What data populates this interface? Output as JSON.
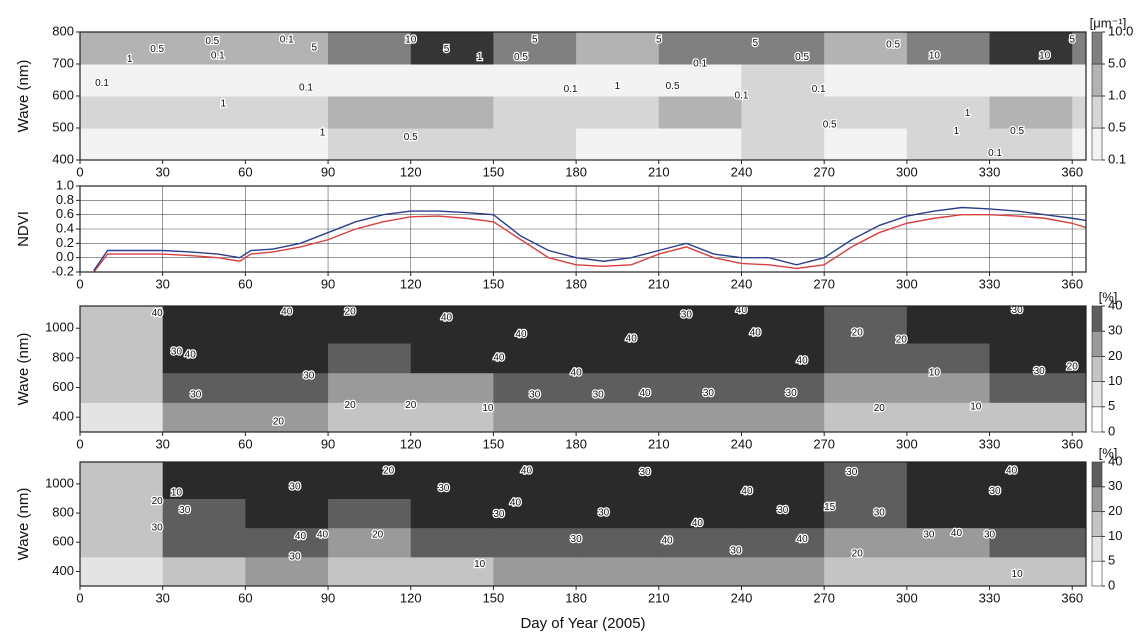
{
  "chart_data": [
    {
      "type": "heatmap",
      "ylabel": "Wave (nm)",
      "colorbar_unit": "[μm⁻¹]",
      "xlim": [
        0,
        365
      ],
      "xticks": [
        0,
        30,
        60,
        90,
        120,
        150,
        180,
        210,
        240,
        270,
        300,
        330,
        360
      ],
      "ylim": [
        400,
        800
      ],
      "yticks": [
        400,
        500,
        600,
        700,
        800
      ],
      "x_edges": [
        0,
        30,
        60,
        90,
        120,
        150,
        180,
        210,
        240,
        270,
        300,
        330,
        360,
        365
      ],
      "y_edges": [
        400,
        500,
        600,
        700,
        800
      ],
      "values": [
        [
          0.3,
          0.4,
          0.3,
          0.5,
          0.5,
          0.5,
          0.4,
          0.4,
          0.5,
          0.3,
          0.5,
          0.5,
          0.4
        ],
        [
          0.5,
          0.8,
          0.6,
          1,
          1,
          0.8,
          0.8,
          1,
          0.8,
          0.5,
          0.8,
          1,
          0.8
        ],
        [
          0.2,
          0.3,
          0.2,
          0.3,
          0.3,
          0.3,
          0.3,
          0.4,
          0.5,
          0.2,
          0.3,
          0.4,
          0.4
        ],
        [
          1,
          3,
          2,
          8,
          10,
          9,
          3,
          6,
          5,
          1,
          6,
          10,
          8
        ]
      ],
      "colorbar_ticks": [
        0.1,
        0.5,
        {
          "value": 1,
          "label": "1.0"
        },
        {
          "value": 5,
          "label": "5.0"
        },
        {
          "value": 10,
          "label": "10.0"
        }
      ],
      "colorscale": [
        "#f3f3f3",
        "#d6d6d6",
        "#b3b3b3",
        "#808080",
        "#353535"
      ],
      "contour_labels": [
        {
          "x": 8,
          "y": 640,
          "label": "0.1"
        },
        {
          "x": 18,
          "y": 715,
          "label": "1"
        },
        {
          "x": 28,
          "y": 745,
          "label": "0.5"
        },
        {
          "x": 48,
          "y": 770,
          "label": "0.5"
        },
        {
          "x": 50,
          "y": 725,
          "label": "0.1"
        },
        {
          "x": 52,
          "y": 575,
          "label": "1"
        },
        {
          "x": 75,
          "y": 775,
          "label": "0.1"
        },
        {
          "x": 82,
          "y": 625,
          "label": "0.1"
        },
        {
          "x": 85,
          "y": 750,
          "label": "5"
        },
        {
          "x": 88,
          "y": 485,
          "label": "1"
        },
        {
          "x": 120,
          "y": 775,
          "label": "10"
        },
        {
          "x": 120,
          "y": 470,
          "label": "0.5"
        },
        {
          "x": 133,
          "y": 745,
          "label": "5"
        },
        {
          "x": 145,
          "y": 720,
          "label": "1"
        },
        {
          "x": 160,
          "y": 720,
          "label": "0.5"
        },
        {
          "x": 165,
          "y": 775,
          "label": "5"
        },
        {
          "x": 178,
          "y": 620,
          "label": "0.1"
        },
        {
          "x": 195,
          "y": 630,
          "label": "1"
        },
        {
          "x": 210,
          "y": 775,
          "label": "5"
        },
        {
          "x": 215,
          "y": 630,
          "label": "0.5"
        },
        {
          "x": 225,
          "y": 700,
          "label": "0.1"
        },
        {
          "x": 240,
          "y": 600,
          "label": "0.1"
        },
        {
          "x": 245,
          "y": 765,
          "label": "5"
        },
        {
          "x": 262,
          "y": 720,
          "label": "0.5"
        },
        {
          "x": 268,
          "y": 620,
          "label": "0.1"
        },
        {
          "x": 272,
          "y": 510,
          "label": "0.5"
        },
        {
          "x": 295,
          "y": 760,
          "label": "0.5"
        },
        {
          "x": 310,
          "y": 725,
          "label": "10"
        },
        {
          "x": 318,
          "y": 490,
          "label": "1"
        },
        {
          "x": 322,
          "y": 545,
          "label": "1"
        },
        {
          "x": 332,
          "y": 420,
          "label": "0.1"
        },
        {
          "x": 340,
          "y": 490,
          "label": "0.5"
        },
        {
          "x": 350,
          "y": 725,
          "label": "10"
        },
        {
          "x": 360,
          "y": 775,
          "label": "5"
        }
      ]
    },
    {
      "type": "line",
      "ylabel": "NDVI",
      "xlim": [
        0,
        365
      ],
      "xticks": [
        0,
        30,
        60,
        90,
        120,
        150,
        180,
        210,
        240,
        270,
        300,
        330,
        360
      ],
      "ylim": [
        -0.2,
        1
      ],
      "yticks": [
        -0.2,
        {
          "value": 0,
          "label": "0.0"
        },
        0.2,
        0.4,
        0.6,
        0.8,
        {
          "value": 1,
          "label": "1.0"
        }
      ],
      "grid": true,
      "x": [
        5,
        10,
        20,
        30,
        40,
        50,
        58,
        62,
        70,
        80,
        90,
        100,
        110,
        120,
        130,
        140,
        150,
        160,
        170,
        180,
        190,
        200,
        210,
        220,
        230,
        240,
        250,
        260,
        270,
        280,
        290,
        300,
        310,
        320,
        330,
        340,
        350,
        360,
        365
      ],
      "series": [
        {
          "color": "#d84040",
          "values": [
            -0.2,
            0.05,
            0.05,
            0.05,
            0.03,
            0,
            -0.05,
            0.05,
            0.08,
            0.15,
            0.25,
            0.4,
            0.5,
            0.57,
            0.58,
            0.55,
            0.5,
            0.25,
            0,
            -0.1,
            -0.12,
            -0.1,
            0.05,
            0.15,
            0,
            -0.08,
            -0.1,
            -0.15,
            -0.1,
            0.15,
            0.35,
            0.48,
            0.55,
            0.6,
            0.6,
            0.58,
            0.55,
            0.48,
            0.42
          ]
        },
        {
          "color": "#2c3f8f",
          "values": [
            -0.18,
            0.1,
            0.1,
            0.1,
            0.08,
            0.05,
            0,
            0.1,
            0.12,
            0.2,
            0.35,
            0.5,
            0.6,
            0.65,
            0.65,
            0.63,
            0.6,
            0.3,
            0.1,
            0,
            -0.05,
            0,
            0.1,
            0.2,
            0.05,
            0,
            0,
            -0.1,
            0,
            0.25,
            0.45,
            0.58,
            0.65,
            0.7,
            0.68,
            0.65,
            0.6,
            0.55,
            0.52
          ]
        }
      ]
    },
    {
      "type": "heatmap",
      "ylabel": "Wave (nm)",
      "colorbar_unit": "[%]",
      "xlim": [
        0,
        365
      ],
      "xticks": [
        0,
        30,
        60,
        90,
        120,
        150,
        180,
        210,
        240,
        270,
        300,
        330,
        360
      ],
      "ylim": [
        300,
        1150
      ],
      "yticks": [
        400,
        600,
        800,
        1000
      ],
      "x_edges": [
        0,
        30,
        60,
        90,
        120,
        150,
        180,
        210,
        240,
        270,
        300,
        330,
        360,
        365
      ],
      "y_edges": [
        300,
        500,
        700,
        900,
        1150
      ],
      "values": [
        [
          5,
          20,
          25,
          10,
          15,
          25,
          20,
          25,
          25,
          15,
          10,
          10,
          10
        ],
        [
          10,
          30,
          35,
          20,
          25,
          30,
          35,
          35,
          30,
          20,
          25,
          30,
          30
        ],
        [
          10,
          40,
          40,
          35,
          40,
          40,
          40,
          40,
          40,
          30,
          35,
          40,
          40
        ],
        [
          10,
          40,
          40,
          40,
          40,
          40,
          40,
          40,
          40,
          35,
          40,
          40,
          40
        ]
      ],
      "colorbar_ticks": [
        0,
        5,
        10,
        20,
        30,
        40
      ],
      "colorscale": [
        "#ffffff",
        "#e4e4e4",
        "#c4c4c4",
        "#9a9a9a",
        "#5e5e5e",
        "#2a2a2a"
      ],
      "contour_labels": [
        {
          "x": 28,
          "y": 1100,
          "label": "40"
        },
        {
          "x": 35,
          "y": 840,
          "label": "30"
        },
        {
          "x": 40,
          "y": 820,
          "label": "40"
        },
        {
          "x": 42,
          "y": 550,
          "label": "30"
        },
        {
          "x": 75,
          "y": 1110,
          "label": "40"
        },
        {
          "x": 83,
          "y": 680,
          "label": "30"
        },
        {
          "x": 72,
          "y": 370,
          "label": "20"
        },
        {
          "x": 98,
          "y": 1110,
          "label": "20"
        },
        {
          "x": 98,
          "y": 480,
          "label": "20"
        },
        {
          "x": 120,
          "y": 480,
          "label": "20"
        },
        {
          "x": 133,
          "y": 1070,
          "label": "40"
        },
        {
          "x": 148,
          "y": 460,
          "label": "10"
        },
        {
          "x": 152,
          "y": 800,
          "label": "40"
        },
        {
          "x": 160,
          "y": 960,
          "label": "40"
        },
        {
          "x": 165,
          "y": 550,
          "label": "30"
        },
        {
          "x": 180,
          "y": 700,
          "label": "40"
        },
        {
          "x": 188,
          "y": 550,
          "label": "30"
        },
        {
          "x": 200,
          "y": 930,
          "label": "40"
        },
        {
          "x": 205,
          "y": 560,
          "label": "40"
        },
        {
          "x": 220,
          "y": 1090,
          "label": "30"
        },
        {
          "x": 228,
          "y": 560,
          "label": "30"
        },
        {
          "x": 240,
          "y": 1120,
          "label": "40"
        },
        {
          "x": 245,
          "y": 970,
          "label": "40"
        },
        {
          "x": 258,
          "y": 560,
          "label": "30"
        },
        {
          "x": 262,
          "y": 780,
          "label": "40"
        },
        {
          "x": 282,
          "y": 970,
          "label": "20"
        },
        {
          "x": 290,
          "y": 460,
          "label": "20"
        },
        {
          "x": 298,
          "y": 920,
          "label": "20"
        },
        {
          "x": 310,
          "y": 700,
          "label": "10"
        },
        {
          "x": 325,
          "y": 470,
          "label": "10"
        },
        {
          "x": 340,
          "y": 1120,
          "label": "30"
        },
        {
          "x": 348,
          "y": 710,
          "label": "30"
        },
        {
          "x": 360,
          "y": 740,
          "label": "20"
        }
      ]
    },
    {
      "type": "heatmap",
      "ylabel": "Wave (nm)",
      "xlabel": "Day of Year (2005)",
      "colorbar_unit": "[%]",
      "xlim": [
        0,
        365
      ],
      "xticks": [
        0,
        30,
        60,
        90,
        120,
        150,
        180,
        210,
        240,
        270,
        300,
        330,
        360
      ],
      "ylim": [
        300,
        1150
      ],
      "yticks": [
        400,
        600,
        800,
        1000
      ],
      "x_edges": [
        0,
        30,
        60,
        90,
        120,
        150,
        180,
        210,
        240,
        270,
        300,
        330,
        360,
        365
      ],
      "y_edges": [
        300,
        500,
        700,
        900,
        1150
      ],
      "values": [
        [
          5,
          15,
          20,
          15,
          15,
          20,
          25,
          25,
          20,
          15,
          10,
          10,
          10
        ],
        [
          10,
          30,
          35,
          25,
          30,
          30,
          35,
          35,
          30,
          20,
          25,
          30,
          30
        ],
        [
          10,
          35,
          40,
          35,
          40,
          40,
          40,
          40,
          40,
          35,
          40,
          40,
          40
        ],
        [
          10,
          40,
          40,
          40,
          40,
          40,
          40,
          40,
          40,
          35,
          40,
          40,
          40
        ]
      ],
      "colorbar_ticks": [
        0,
        5,
        10,
        20,
        30,
        40
      ],
      "colorscale": [
        "#ffffff",
        "#e4e4e4",
        "#c4c4c4",
        "#9a9a9a",
        "#5e5e5e",
        "#2a2a2a"
      ],
      "contour_labels": [
        {
          "x": 28,
          "y": 880,
          "label": "20"
        },
        {
          "x": 28,
          "y": 700,
          "label": "30"
        },
        {
          "x": 35,
          "y": 940,
          "label": "10"
        },
        {
          "x": 38,
          "y": 820,
          "label": "30"
        },
        {
          "x": 78,
          "y": 980,
          "label": "30"
        },
        {
          "x": 80,
          "y": 640,
          "label": "40"
        },
        {
          "x": 78,
          "y": 500,
          "label": "30"
        },
        {
          "x": 88,
          "y": 650,
          "label": "40"
        },
        {
          "x": 108,
          "y": 650,
          "label": "20"
        },
        {
          "x": 112,
          "y": 1090,
          "label": "20"
        },
        {
          "x": 132,
          "y": 970,
          "label": "30"
        },
        {
          "x": 152,
          "y": 790,
          "label": "30"
        },
        {
          "x": 158,
          "y": 870,
          "label": "40"
        },
        {
          "x": 162,
          "y": 1090,
          "label": "40"
        },
        {
          "x": 145,
          "y": 450,
          "label": "10"
        },
        {
          "x": 180,
          "y": 620,
          "label": "30"
        },
        {
          "x": 190,
          "y": 800,
          "label": "30"
        },
        {
          "x": 205,
          "y": 1080,
          "label": "30"
        },
        {
          "x": 213,
          "y": 610,
          "label": "40"
        },
        {
          "x": 224,
          "y": 730,
          "label": "40"
        },
        {
          "x": 242,
          "y": 950,
          "label": "40"
        },
        {
          "x": 238,
          "y": 540,
          "label": "30"
        },
        {
          "x": 255,
          "y": 820,
          "label": "30"
        },
        {
          "x": 262,
          "y": 620,
          "label": "40"
        },
        {
          "x": 272,
          "y": 840,
          "label": "15"
        },
        {
          "x": 280,
          "y": 1080,
          "label": "30"
        },
        {
          "x": 290,
          "y": 800,
          "label": "30"
        },
        {
          "x": 282,
          "y": 520,
          "label": "20"
        },
        {
          "x": 308,
          "y": 650,
          "label": "30"
        },
        {
          "x": 318,
          "y": 660,
          "label": "40"
        },
        {
          "x": 330,
          "y": 650,
          "label": "30"
        },
        {
          "x": 338,
          "y": 1090,
          "label": "40"
        },
        {
          "x": 332,
          "y": 950,
          "label": "30"
        },
        {
          "x": 340,
          "y": 380,
          "label": "10"
        }
      ]
    }
  ]
}
